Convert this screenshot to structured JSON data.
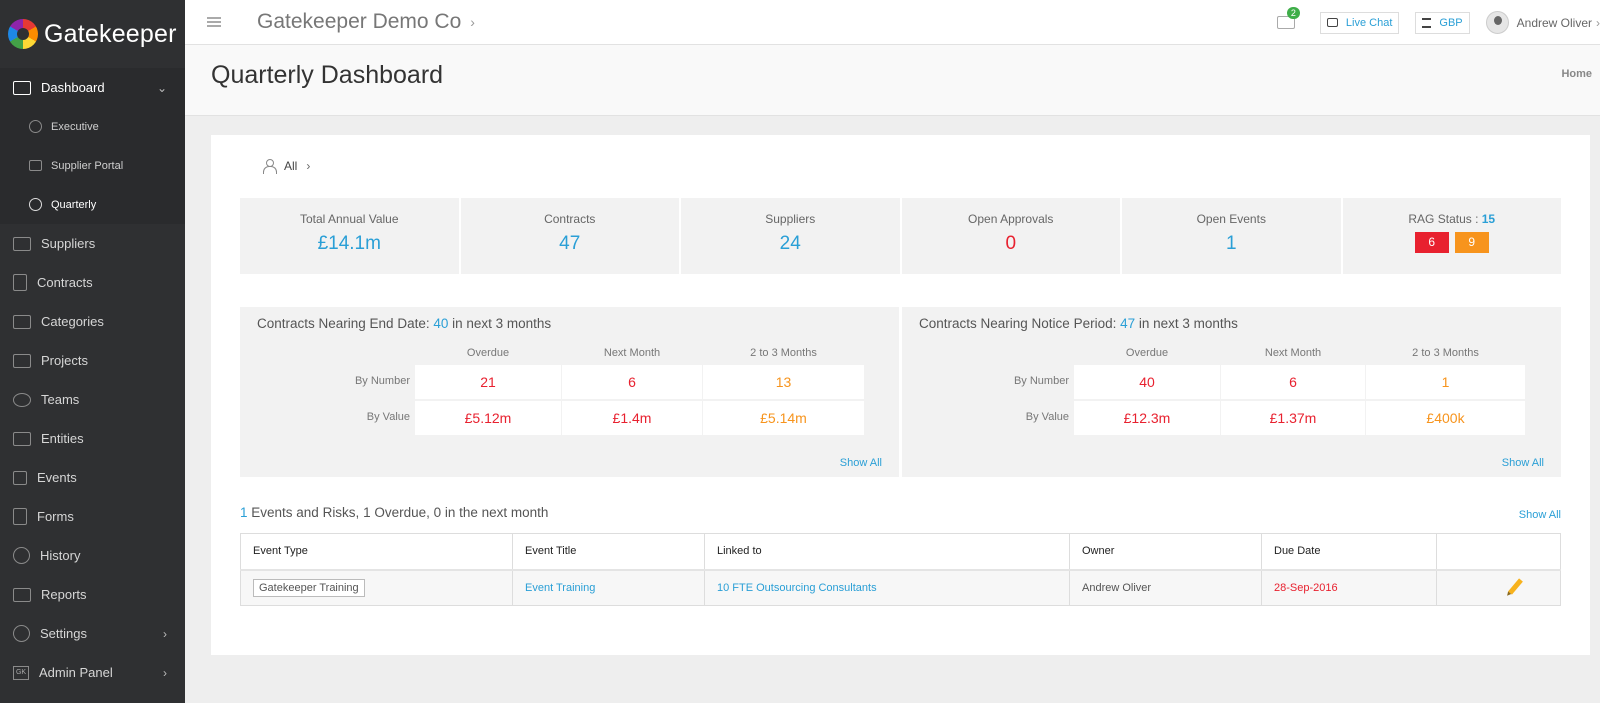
{
  "app": {
    "logo_text": "Gatekeeper"
  },
  "sidebar": {
    "items": [
      {
        "label": "Dashboard",
        "icon": "monitor-icon"
      },
      {
        "label": "Suppliers",
        "icon": "inbox-icon"
      },
      {
        "label": "Contracts",
        "icon": "document-icon"
      },
      {
        "label": "Categories",
        "icon": "folders-icon"
      },
      {
        "label": "Projects",
        "icon": "pencil-square-icon"
      },
      {
        "label": "Teams",
        "icon": "users-icon"
      },
      {
        "label": "Entities",
        "icon": "building-icon"
      },
      {
        "label": "Events",
        "icon": "flag-icon"
      },
      {
        "label": "Forms",
        "icon": "clipboard-icon"
      },
      {
        "label": "History",
        "icon": "clock-icon"
      },
      {
        "label": "Reports",
        "icon": "chart-icon"
      },
      {
        "label": "Settings",
        "icon": "gear-icon"
      },
      {
        "label": "Admin Panel",
        "icon": "gk-icon",
        "icon_text": "GK"
      }
    ],
    "dashboard_sub": [
      {
        "label": "Executive"
      },
      {
        "label": "Supplier Portal"
      },
      {
        "label": "Quarterly"
      }
    ]
  },
  "topbar": {
    "company": "Gatekeeper Demo Co",
    "mail_count": "2",
    "live_chat": "Live Chat",
    "currency": "GBP",
    "user": "Andrew Oliver"
  },
  "header": {
    "title": "Quarterly Dashboard",
    "breadcrumb": "Home"
  },
  "filter": {
    "label": "All"
  },
  "stats": {
    "total_annual_value": {
      "label": "Total Annual Value",
      "value": "£14.1m"
    },
    "contracts": {
      "label": "Contracts",
      "value": "47"
    },
    "suppliers": {
      "label": "Suppliers",
      "value": "24"
    },
    "open_approvals": {
      "label": "Open Approvals",
      "value": "0"
    },
    "open_events": {
      "label": "Open Events",
      "value": "1"
    },
    "rag": {
      "label": "RAG Status : ",
      "total": "15",
      "red": "6",
      "amber": "9"
    }
  },
  "end_date": {
    "title_prefix": "Contracts Nearing End Date: ",
    "count": "40",
    "title_suffix": " in next 3 months",
    "columns": [
      "Overdue",
      "Next Month",
      "2 to 3 Months"
    ],
    "rows": [
      "By Number",
      "By Value"
    ],
    "by_number": [
      "21",
      "6",
      "13"
    ],
    "by_value": [
      "£5.12m",
      "£1.4m",
      "£5.14m"
    ],
    "show_all": "Show All"
  },
  "notice": {
    "title_prefix": "Contracts Nearing Notice Period: ",
    "count": "47",
    "title_suffix": " in next 3 months",
    "columns": [
      "Overdue",
      "Next Month",
      "2 to 3 Months"
    ],
    "rows": [
      "By Number",
      "By Value"
    ],
    "by_number": [
      "40",
      "6",
      "1"
    ],
    "by_value": [
      "£12.3m",
      "£1.37m",
      "£400k"
    ],
    "show_all": "Show All"
  },
  "events": {
    "count": "1",
    "summary": " Events and Risks, 1 Overdue, 0 in the next month",
    "show_all": "Show All",
    "headers": [
      "Event Type",
      "Event Title",
      "Linked to",
      "Owner",
      "Due Date"
    ],
    "rows": [
      {
        "type": "Gatekeeper Training",
        "title": "Event Training",
        "linked": "10 FTE Outsourcing Consultants",
        "owner": "Andrew Oliver",
        "due": "28-Sep-2016"
      }
    ]
  }
}
